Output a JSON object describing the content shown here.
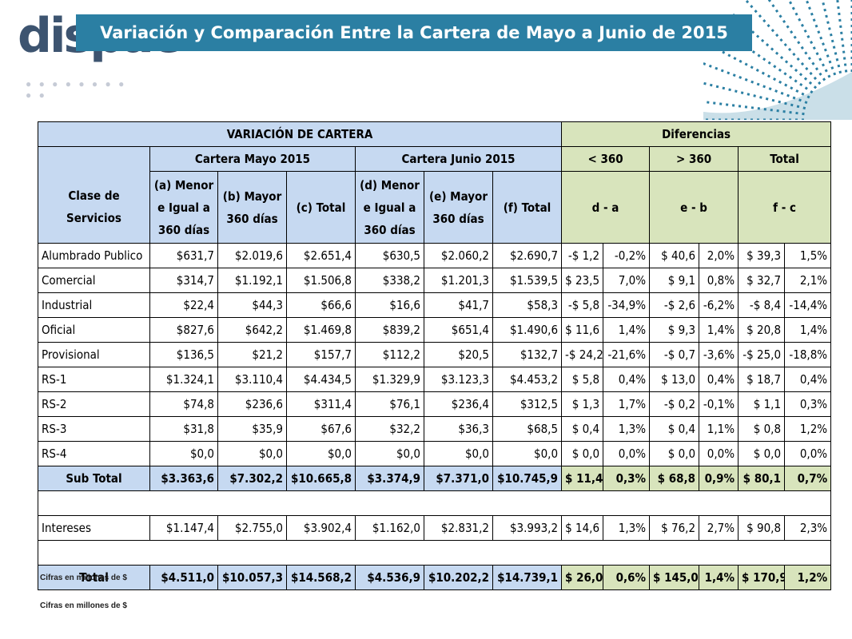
{
  "header": {
    "title": "Variación y Comparación Entre la Cartera de Mayo a Junio de 2015",
    "logo_text": "dispac"
  },
  "colors": {
    "title_bar": "#2b7fa3",
    "header_blue": "#c6d9f1",
    "header_green": "#d8e4bc"
  },
  "table": {
    "h_variacion": "VARIACIÓN DE CARTERA",
    "h_diferencias": "Diferencias",
    "h_mayo": "Cartera Mayo 2015",
    "h_junio": "Cartera Junio 2015",
    "h_lt360": "< 360",
    "h_gt360": "> 360",
    "h_total": "Total",
    "h_clase": "Clase de Servicios",
    "h_a": "(a) Menor e Igual a 360 días",
    "h_b": "(b) Mayor 360 días",
    "h_c": "(c) Total",
    "h_d": "(d) Menor e Igual a 360 días",
    "h_e": "(e) Mayor 360 días",
    "h_f": "(f) Total",
    "h_da": "d - a",
    "h_eb": "e - b",
    "h_fc": "f - c",
    "rows": [
      {
        "name": "Alumbrado Publico",
        "a": "$631,7",
        "b": "$2.019,6",
        "c": "$2.651,4",
        "d": "$630,5",
        "e": "$2.060,2",
        "f": "$2.690,7",
        "da": "-$ 1,2",
        "dap": "-0,2%",
        "eb": "$ 40,6",
        "ebp": "2,0%",
        "fc": "$ 39,3",
        "fcp": "1,5%"
      },
      {
        "name": "Comercial",
        "a": "$314,7",
        "b": "$1.192,1",
        "c": "$1.506,8",
        "d": "$338,2",
        "e": "$1.201,3",
        "f": "$1.539,5",
        "da": "$ 23,5",
        "dap": "7,0%",
        "eb": "$ 9,1",
        "ebp": "0,8%",
        "fc": "$ 32,7",
        "fcp": "2,1%"
      },
      {
        "name": "Industrial",
        "a": "$22,4",
        "b": "$44,3",
        "c": "$66,6",
        "d": "$16,6",
        "e": "$41,7",
        "f": "$58,3",
        "da": "-$ 5,8",
        "dap": "-34,9%",
        "eb": "-$ 2,6",
        "ebp": "-6,2%",
        "fc": "-$ 8,4",
        "fcp": "-14,4%"
      },
      {
        "name": "Oficial",
        "a": "$827,6",
        "b": "$642,2",
        "c": "$1.469,8",
        "d": "$839,2",
        "e": "$651,4",
        "f": "$1.490,6",
        "da": "$ 11,6",
        "dap": "1,4%",
        "eb": "$ 9,3",
        "ebp": "1,4%",
        "fc": "$ 20,8",
        "fcp": "1,4%"
      },
      {
        "name": "Provisional",
        "a": "$136,5",
        "b": "$21,2",
        "c": "$157,7",
        "d": "$112,2",
        "e": "$20,5",
        "f": "$132,7",
        "da": "-$ 24,2",
        "dap": "-21,6%",
        "eb": "-$ 0,7",
        "ebp": "-3,6%",
        "fc": "-$ 25,0",
        "fcp": "-18,8%"
      },
      {
        "name": "RS-1",
        "a": "$1.324,1",
        "b": "$3.110,4",
        "c": "$4.434,5",
        "d": "$1.329,9",
        "e": "$3.123,3",
        "f": "$4.453,2",
        "da": "$ 5,8",
        "dap": "0,4%",
        "eb": "$ 13,0",
        "ebp": "0,4%",
        "fc": "$ 18,7",
        "fcp": "0,4%"
      },
      {
        "name": "RS-2",
        "a": "$74,8",
        "b": "$236,6",
        "c": "$311,4",
        "d": "$76,1",
        "e": "$236,4",
        "f": "$312,5",
        "da": "$ 1,3",
        "dap": "1,7%",
        "eb": "-$ 0,2",
        "ebp": "-0,1%",
        "fc": "$ 1,1",
        "fcp": "0,3%"
      },
      {
        "name": "RS-3",
        "a": "$31,8",
        "b": "$35,9",
        "c": "$67,6",
        "d": "$32,2",
        "e": "$36,3",
        "f": "$68,5",
        "da": "$ 0,4",
        "dap": "1,3%",
        "eb": "$ 0,4",
        "ebp": "1,1%",
        "fc": "$ 0,8",
        "fcp": "1,2%"
      },
      {
        "name": "RS-4",
        "a": "$0,0",
        "b": "$0,0",
        "c": "$0,0",
        "d": "$0,0",
        "e": "$0,0",
        "f": "$0,0",
        "da": "$ 0,0",
        "dap": "0,0%",
        "eb": "$ 0,0",
        "ebp": "0,0%",
        "fc": "$ 0,0",
        "fcp": "0,0%"
      }
    ],
    "subtotal": {
      "name": "Sub Total",
      "a": "$3.363,6",
      "b": "$7.302,2",
      "c": "$10.665,8",
      "d": "$3.374,9",
      "e": "$7.371,0",
      "f": "$10.745,9",
      "da": "$ 11,4",
      "dap": "0,3%",
      "eb": "$ 68,8",
      "ebp": "0,9%",
      "fc": "$ 80,1",
      "fcp": "0,7%"
    },
    "intereses": {
      "name": "Intereses",
      "a": "$1.147,4",
      "b": "$2.755,0",
      "c": "$3.902,4",
      "d": "$1.162,0",
      "e": "$2.831,2",
      "f": "$3.993,2",
      "da": "$ 14,6",
      "dap": "1,3%",
      "eb": "$ 76,2",
      "ebp": "2,7%",
      "fc": "$ 90,8",
      "fcp": "2,3%"
    },
    "total": {
      "name": "Total",
      "a": "$4.511,0",
      "b": "$10.057,3",
      "c": "$14.568,2",
      "d": "$4.536,9",
      "e": "$10.202,2",
      "f": "$14.739,1",
      "da": "$ 26,0",
      "dap": "0,6%",
      "eb": "$ 145,0",
      "ebp": "1,4%",
      "fc": "$ 170,9",
      "fcp": "1,2%"
    }
  },
  "footnotes": [
    "Cifras en millones de $",
    "Cifras en millones de $"
  ]
}
